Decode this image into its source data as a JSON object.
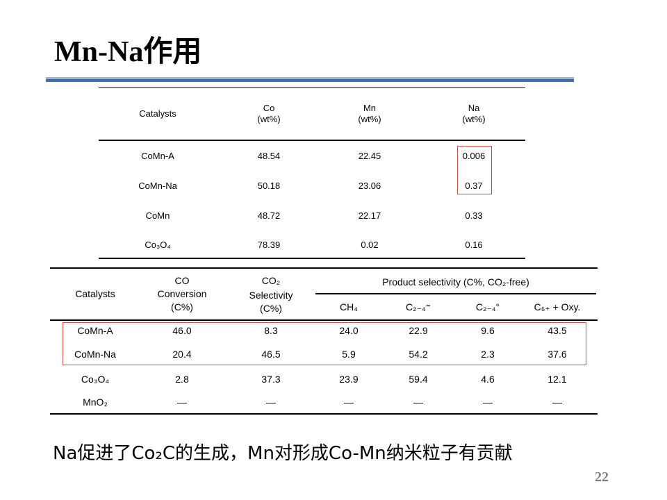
{
  "title": "Mn-Na作用",
  "table1": {
    "headers": [
      [
        "Catalysts"
      ],
      [
        "Co",
        "(wt%)"
      ],
      [
        "Mn",
        "(wt%)"
      ],
      [
        "Na",
        "(wt%)"
      ]
    ],
    "rows": [
      [
        "CoMn-A",
        "48.54",
        "22.45",
        "0.006"
      ],
      [
        "CoMn-Na",
        "50.18",
        "23.06",
        "0.37"
      ],
      [
        "CoMn",
        "48.72",
        "22.17",
        "0.33"
      ],
      [
        "Co₃O₄",
        "78.39",
        "0.02",
        "0.16"
      ]
    ]
  },
  "table2": {
    "h_catalysts": "Catalysts",
    "h_co": [
      "CO",
      "Conversion",
      "(C%)"
    ],
    "h_co2": [
      "CO₂",
      "Selectivity",
      "(C%)"
    ],
    "h_product": "Product selectivity (C%, CO₂-free)",
    "h_sub": [
      "CH₄",
      "C₂₋₄⁼",
      "C₂₋₄°",
      "C₅₊ + Oxy."
    ],
    "rows": [
      [
        "CoMn-A",
        "46.0",
        "8.3",
        "24.0",
        "22.9",
        "9.6",
        "43.5"
      ],
      [
        "CoMn-Na",
        "20.4",
        "46.5",
        "5.9",
        "54.2",
        "2.3",
        "37.6"
      ],
      [
        "Co₃O₄",
        "2.8",
        "37.3",
        "23.9",
        "59.4",
        "4.6",
        "12.1"
      ],
      [
        "MnO₂",
        "—",
        "—",
        "—",
        "—",
        "—",
        "—"
      ]
    ]
  },
  "conclusion": "Na促进了Co₂C的生成，Mn对形成Co-Mn纳米粒子有贡献",
  "page_number": "22",
  "colors": {
    "accent_blue": "#3f6fa8",
    "highlight_red": "#c0504d"
  }
}
